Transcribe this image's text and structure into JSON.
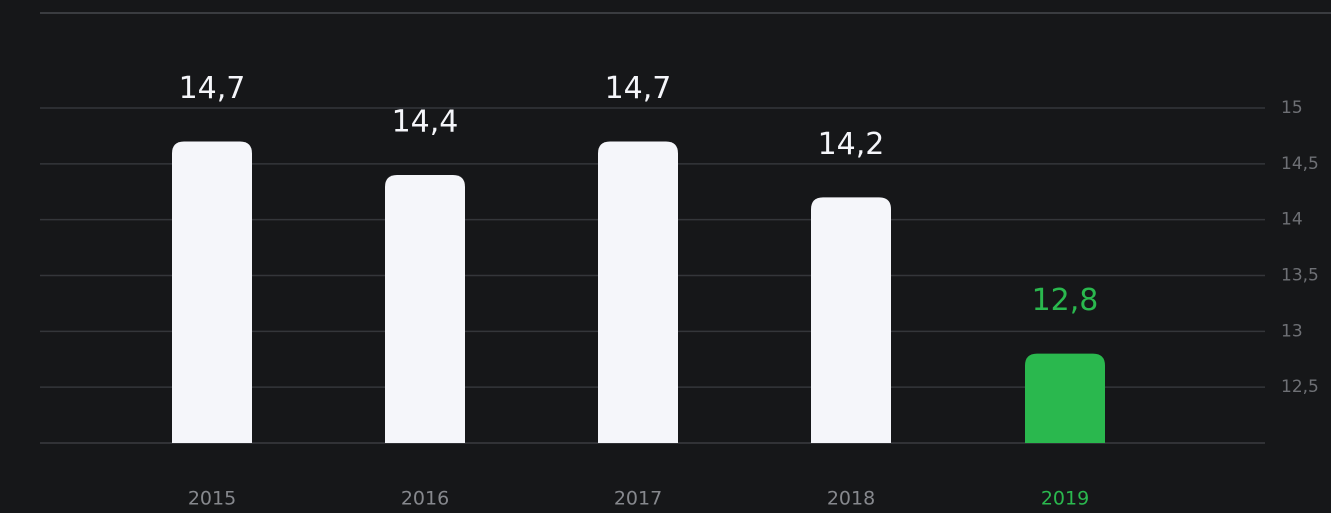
{
  "chart_data": {
    "type": "bar",
    "categories": [
      "2015",
      "2016",
      "2017",
      "2018",
      "2019"
    ],
    "values": [
      14.7,
      14.4,
      14.7,
      14.2,
      12.8
    ],
    "value_labels": [
      "14,7",
      "14,4",
      "14,7",
      "14,2",
      "12,8"
    ],
    "colors": [
      "#f5f6fa",
      "#f5f6fa",
      "#f5f6fa",
      "#f5f6fa",
      "#2ab84e"
    ],
    "ylim": [
      12,
      15.6
    ],
    "yticks": [
      15,
      {
        "value": 14.5,
        "label": "14,5"
      },
      14,
      {
        "value": 13.5,
        "label": "13,5"
      },
      13,
      {
        "value": 12.5,
        "label": "12,5"
      }
    ],
    "grid": true
  }
}
